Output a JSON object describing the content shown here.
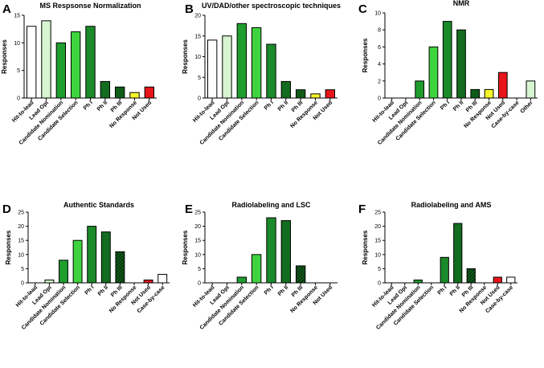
{
  "colors": {
    "white": "#ffffff",
    "pale_green": "#d6f5d0",
    "green": "#1f9e2e",
    "bright_green": "#3ed43e",
    "mid_green": "#1a8a2a",
    "dark_green": "#136c1f",
    "darker_green": "#0f5c19",
    "hatched_green": "#0f5c19",
    "yellow": "#f6f62b",
    "red": "#e8151b",
    "stroke": "#000000"
  },
  "chart_data": [
    {
      "letter": "A",
      "type": "bar",
      "title": "MS Respsonse Normalization",
      "ylabel": "Responses",
      "ylim": [
        0,
        15
      ],
      "yticks": [
        0,
        5,
        10,
        15
      ],
      "categories": [
        "Hit-to-lead",
        "Lead Opt",
        "Candidate Nomination",
        "Candidate Selection",
        "Ph I",
        "Ph II",
        "Ph III",
        "No Response",
        "Not Used"
      ],
      "values": [
        13,
        14,
        10,
        12,
        13,
        3,
        2,
        1,
        2
      ],
      "fills": [
        "white",
        "pale_green",
        "green",
        "bright_green",
        "mid_green",
        "dark_green",
        "darker_green",
        "yellow",
        "red"
      ]
    },
    {
      "letter": "B",
      "type": "bar",
      "title": "UV/DAD/other spectroscopic techniques",
      "ylabel": "Responses",
      "ylim": [
        0,
        20
      ],
      "yticks": [
        0,
        5,
        10,
        15,
        20
      ],
      "categories": [
        "Hit-to-lead",
        "Lead Opt",
        "Candidate Nomination",
        "Candidate Selection",
        "Ph I",
        "Ph II",
        "Ph III",
        "No Response",
        "Not Used"
      ],
      "values": [
        14,
        15,
        18,
        17,
        13,
        4,
        2,
        1,
        2
      ],
      "fills": [
        "white",
        "pale_green",
        "green",
        "bright_green",
        "mid_green",
        "dark_green",
        "darker_green",
        "yellow",
        "red"
      ]
    },
    {
      "letter": "C",
      "type": "bar",
      "title": "NMR",
      "ylabel": "Responses",
      "ylim": [
        0,
        10
      ],
      "yticks": [
        0,
        2,
        4,
        6,
        8,
        10
      ],
      "categories": [
        "Hit-to-lead",
        "Lead Opt",
        "Candidate Nomination",
        "Candidate Selection",
        "Ph I",
        "Ph II",
        "Ph III",
        "No Response",
        "Not Used",
        "Case-by-case",
        "Other"
      ],
      "values": [
        0,
        0,
        2,
        6,
        9,
        8,
        1,
        1,
        3,
        0,
        2
      ],
      "fills": [
        "white",
        "pale_green",
        "green",
        "bright_green",
        "mid_green",
        "dark_green",
        "darker_green",
        "yellow",
        "red",
        "white",
        "pale_green"
      ]
    },
    {
      "letter": "D",
      "type": "bar",
      "title": "Authentic Standards",
      "ylabel": "Responses",
      "ylim": [
        0,
        25
      ],
      "yticks": [
        0,
        5,
        10,
        15,
        20,
        25
      ],
      "categories": [
        "Hit-to-lead",
        "Lead Opt",
        "Candidate Nomination",
        "Candidate Selection",
        "Ph I",
        "Ph II",
        "Ph III",
        "No Response",
        "Not Used",
        "Case-by-case"
      ],
      "values": [
        0,
        1,
        8,
        15,
        20,
        18,
        11,
        0,
        1,
        3
      ],
      "fills": [
        "white",
        "pale_green",
        "green",
        "bright_green",
        "mid_green",
        "dark_green",
        "hatched_green",
        "yellow",
        "red",
        "white"
      ]
    },
    {
      "letter": "E",
      "type": "bar",
      "title": "Radiolabeling and LSC",
      "ylabel": "Responses",
      "ylim": [
        0,
        25
      ],
      "yticks": [
        0,
        5,
        10,
        15,
        20,
        25
      ],
      "categories": [
        "Hit-to-lead",
        "Lead Opt",
        "Candidate Nomination",
        "Candidate Selection",
        "Ph I",
        "Ph II",
        "Ph III",
        "No Response",
        "Not Used"
      ],
      "values": [
        0,
        0,
        2,
        10,
        23,
        22,
        6,
        0,
        0
      ],
      "fills": [
        "white",
        "pale_green",
        "green",
        "bright_green",
        "mid_green",
        "dark_green",
        "hatched_green",
        "yellow",
        "red"
      ]
    },
    {
      "letter": "F",
      "type": "bar",
      "title": "Radiolabeling and AMS",
      "ylabel": "Responses",
      "ylim": [
        0,
        25
      ],
      "yticks": [
        0,
        5,
        10,
        15,
        20,
        25
      ],
      "categories": [
        "Hit-to-lead",
        "Lead Opt",
        "Candidate Nomination",
        "Candidate Selection",
        "Ph I",
        "Ph II",
        "Ph III",
        "No Response",
        "Not Used",
        "Case-by-case"
      ],
      "values": [
        0,
        0,
        1,
        0,
        9,
        21,
        5,
        0,
        2,
        2
      ],
      "fills": [
        "white",
        "pale_green",
        "green",
        "bright_green",
        "mid_green",
        "dark_green",
        "hatched_green",
        "yellow",
        "red",
        "white"
      ]
    }
  ]
}
